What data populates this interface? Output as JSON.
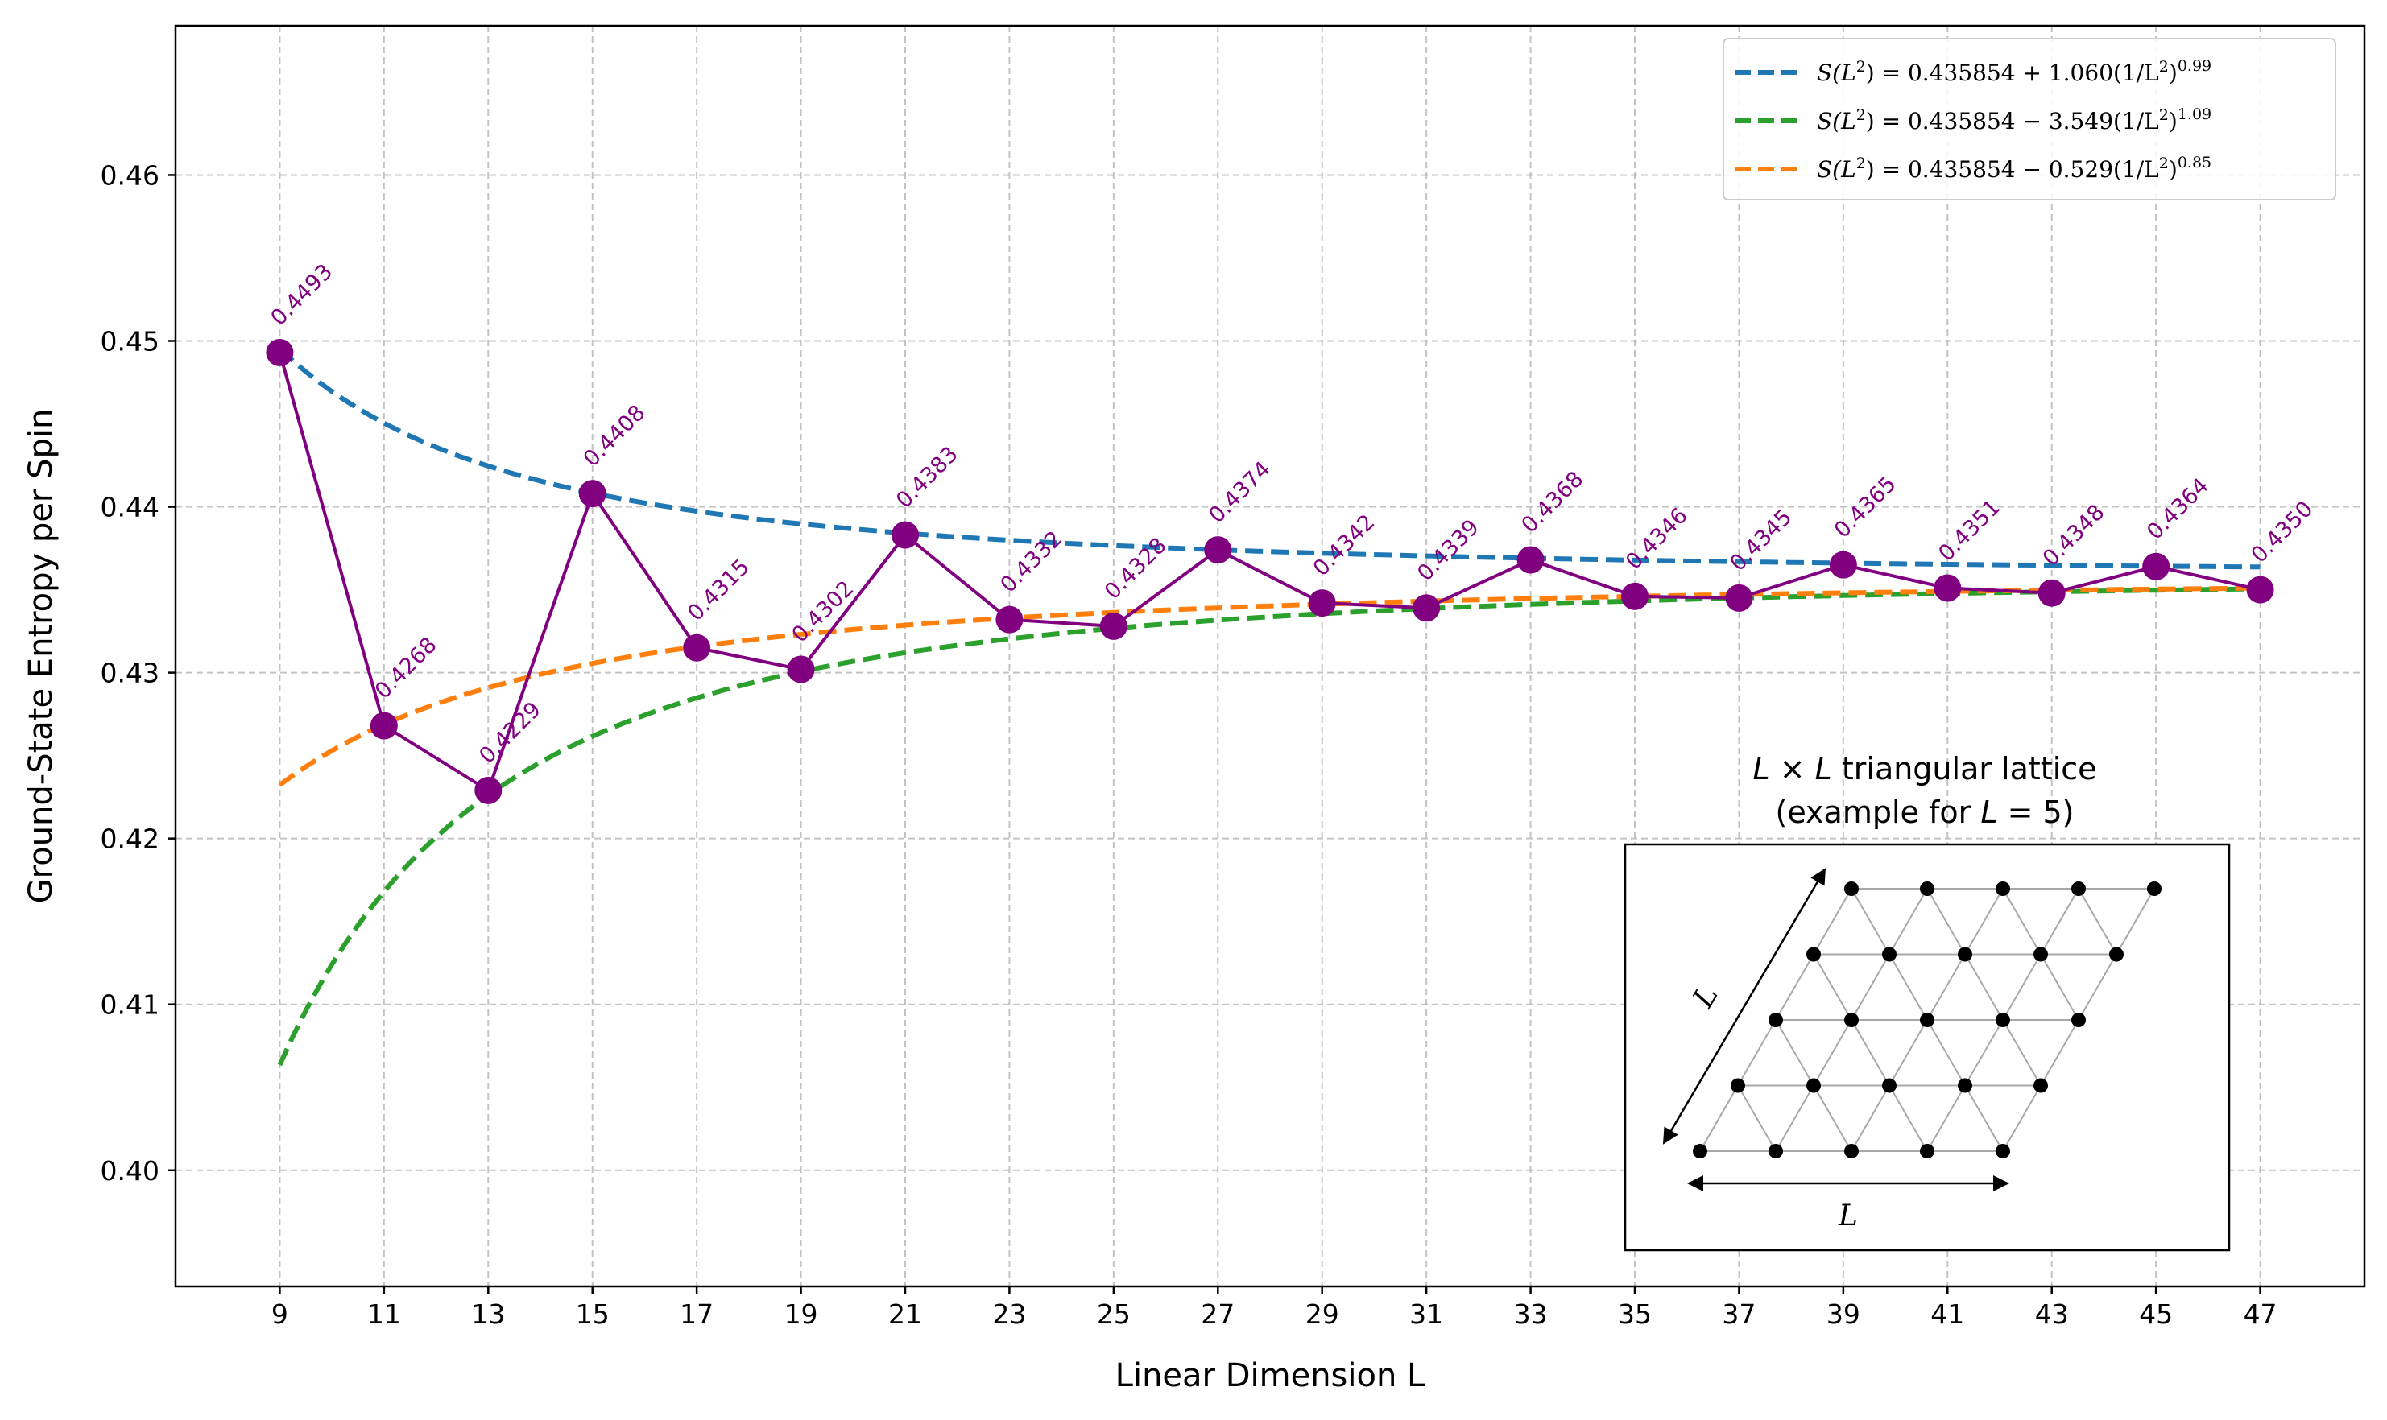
{
  "chart_data": {
    "type": "line",
    "xlabel": "Linear Dimension L",
    "ylabel": "Ground-State Entropy per Spin",
    "xlim": [
      7.0,
      49.0
    ],
    "ylim": [
      0.393,
      0.469
    ],
    "xticks": [
      9,
      11,
      13,
      15,
      17,
      19,
      21,
      23,
      25,
      27,
      29,
      31,
      33,
      35,
      37,
      39,
      41,
      43,
      45,
      47
    ],
    "yticks": [
      0.4,
      0.41,
      0.42,
      0.43,
      0.44,
      0.45,
      0.46
    ],
    "ytick_labels": [
      "0.40",
      "0.41",
      "0.42",
      "0.43",
      "0.44",
      "0.45",
      "0.46"
    ],
    "grid": true,
    "data": {
      "x": [
        9,
        11,
        13,
        15,
        17,
        19,
        21,
        23,
        25,
        27,
        29,
        31,
        33,
        35,
        37,
        39,
        41,
        43,
        45,
        47
      ],
      "y": [
        0.4493,
        0.4268,
        0.4229,
        0.4408,
        0.4315,
        0.4302,
        0.4383,
        0.4332,
        0.4328,
        0.4374,
        0.4342,
        0.4339,
        0.4368,
        0.4346,
        0.4345,
        0.4365,
        0.4351,
        0.4348,
        0.4364,
        0.435
      ],
      "labels": [
        "0.4493",
        "0.4268",
        "0.4229",
        "0.4408",
        "0.4315",
        "0.4302",
        "0.4383",
        "0.4332",
        "0.4328",
        "0.4374",
        "0.4342",
        "0.4339",
        "0.4368",
        "0.4346",
        "0.4345",
        "0.4365",
        "0.4351",
        "0.4348",
        "0.4364",
        "0.4350"
      ],
      "color": "#800080"
    },
    "fits": [
      {
        "name": "S(L²) = 0.435854 + 1.060(1/L²)^0.99",
        "a": 0.435854,
        "b": 1.06,
        "c": 0.99,
        "color": "#1f77b4",
        "legend_parts": [
          "S(L",
          "2",
          ") = 0.435854 + 1.060(1/L",
          "2",
          ")",
          "0.99"
        ]
      },
      {
        "name": "S(L²) = 0.435854 − 3.549(1/L²)^1.09",
        "a": 0.435854,
        "b": -3.549,
        "c": 1.09,
        "color": "#2ca02c",
        "legend_parts": [
          "S(L",
          "2",
          ") = 0.435854 − 3.549(1/L",
          "2",
          ")",
          "1.09"
        ]
      },
      {
        "name": "S(L²) = 0.435854 − 0.529(1/L²)^0.85",
        "a": 0.435854,
        "b": -0.529,
        "c": 0.85,
        "color": "#ff7f0e",
        "legend_parts": [
          "S(L",
          "2",
          ") = 0.435854 − 0.529(1/L",
          "2",
          ")",
          "0.85"
        ]
      }
    ],
    "legend_position": "upper-right",
    "inset": {
      "title_line1_italic": "L",
      "title_line1_rest": " × ",
      "title_line1_italic2": "L",
      "title_line1_tail": " triangular lattice",
      "title_line2_pre": "(example for ",
      "title_line2_italic": "L",
      "title_line2_tail": " = 5)",
      "example_L": 5,
      "bottom_label": "L",
      "side_label": "L"
    }
  }
}
